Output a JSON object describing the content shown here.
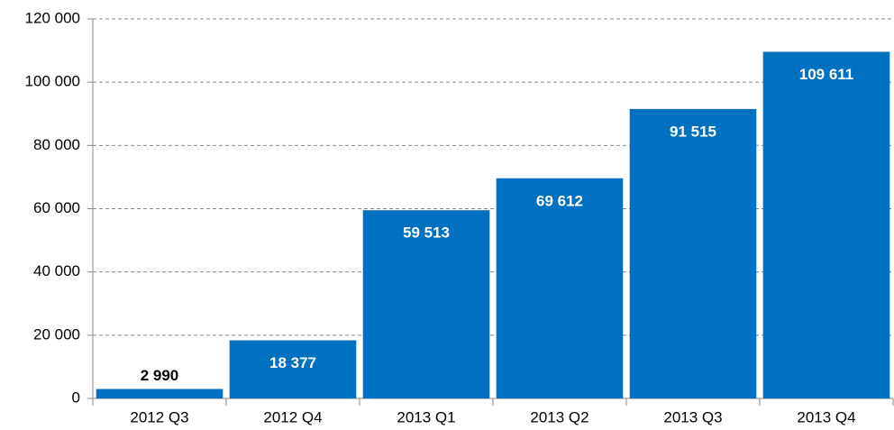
{
  "chart_data": {
    "type": "bar",
    "categories": [
      "2012 Q3",
      "2012 Q4",
      "2013 Q1",
      "2013 Q2",
      "2013 Q3",
      "2013 Q4"
    ],
    "values": [
      2990,
      18377,
      59513,
      69612,
      91515,
      109611
    ],
    "value_labels": [
      "2 990",
      "18 377",
      "59 513",
      "69 612",
      "91 515",
      "109 611"
    ],
    "color": "#0070c0",
    "ylim": [
      0,
      120000
    ],
    "yticks": [
      0,
      {
        "value": 20000,
        "label": "20 000"
      },
      {
        "value": 40000,
        "label": "40 000"
      },
      {
        "value": 60000,
        "label": "60 000"
      },
      {
        "value": 80000,
        "label": "80 000"
      },
      {
        "value": 100000,
        "label": "100 000"
      },
      {
        "value": 120000,
        "label": "120 000"
      }
    ],
    "grid": true
  }
}
